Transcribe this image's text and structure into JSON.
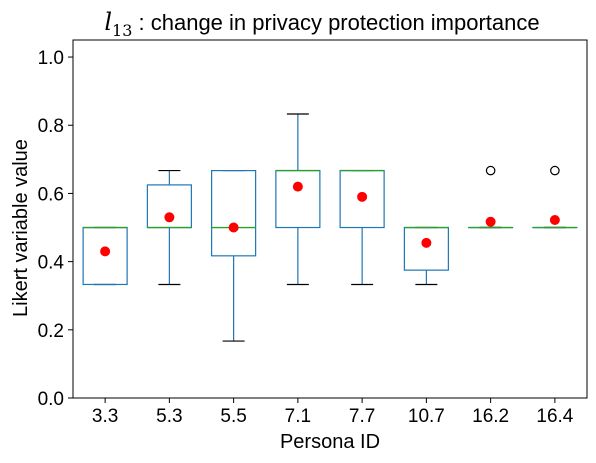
{
  "chart_data": {
    "type": "box",
    "title": {
      "symbol": "l",
      "subscript": "13",
      "text": " : change in privacy protection importance"
    },
    "xlabel": "Persona ID",
    "ylabel": "Likert variable value",
    "ylim": [
      0.0,
      1.05
    ],
    "yticks": [
      0.0,
      0.2,
      0.4,
      0.6,
      0.8,
      1.0
    ],
    "ytick_labels": [
      "0.0",
      "0.2",
      "0.4",
      "0.6",
      "0.8",
      "1.0"
    ],
    "categories": [
      "3.3",
      "5.3",
      "5.5",
      "7.1",
      "7.7",
      "10.7",
      "16.2",
      "16.4"
    ],
    "boxes": [
      {
        "whisker_low": 0.333,
        "q1": 0.333,
        "median": 0.5,
        "q3": 0.5,
        "whisker_high": 0.5,
        "mean": 0.43,
        "outliers": []
      },
      {
        "whisker_low": 0.333,
        "q1": 0.5,
        "median": 0.5,
        "q3": 0.625,
        "whisker_high": 0.667,
        "mean": 0.53,
        "outliers": []
      },
      {
        "whisker_low": 0.167,
        "q1": 0.417,
        "median": 0.5,
        "q3": 0.667,
        "whisker_high": 0.667,
        "mean": 0.5,
        "outliers": []
      },
      {
        "whisker_low": 0.333,
        "q1": 0.5,
        "median": 0.667,
        "q3": 0.667,
        "whisker_high": 0.833,
        "mean": 0.62,
        "outliers": []
      },
      {
        "whisker_low": 0.333,
        "q1": 0.5,
        "median": 0.667,
        "q3": 0.667,
        "whisker_high": 0.667,
        "mean": 0.59,
        "outliers": []
      },
      {
        "whisker_low": 0.333,
        "q1": 0.375,
        "median": 0.5,
        "q3": 0.5,
        "whisker_high": 0.5,
        "mean": 0.455,
        "outliers": []
      },
      {
        "whisker_low": 0.5,
        "q1": 0.5,
        "median": 0.5,
        "q3": 0.5,
        "whisker_high": 0.5,
        "mean": 0.517,
        "outliers": [
          0.667
        ]
      },
      {
        "whisker_low": 0.5,
        "q1": 0.5,
        "median": 0.5,
        "q3": 0.5,
        "whisker_high": 0.5,
        "mean": 0.522,
        "outliers": [
          0.667
        ]
      }
    ],
    "colors": {
      "box": "#1f77b4",
      "median": "#2ca02c",
      "whisker": "#1f77b4",
      "cap": "#000000",
      "mean": "#ff0000",
      "outlier": "#000000"
    },
    "grid": false,
    "legend": "none"
  }
}
